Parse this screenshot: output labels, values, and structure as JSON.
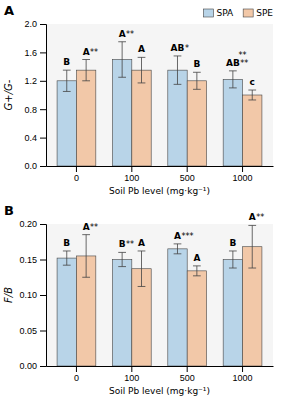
{
  "chart_data": [
    {
      "type": "bar",
      "title": "A",
      "xlabel": "Soil Pb level (mg·kg⁻¹)",
      "ylabel": "G+/G-",
      "categories": [
        "0",
        "100",
        "500",
        "1000"
      ],
      "series": [
        {
          "name": "SPA",
          "color": "#b8d4e8",
          "values": [
            1.2,
            1.5,
            1.35,
            1.22
          ],
          "errors": [
            0.15,
            0.25,
            0.2,
            0.12
          ],
          "labels": [
            "B",
            "A",
            "AB",
            "AB"
          ],
          "significance": [
            null,
            "**",
            "*",
            "**"
          ]
        },
        {
          "name": "SPE",
          "color": "#f2c8a8",
          "values": [
            1.35,
            1.35,
            1.2,
            1.0
          ],
          "errors": [
            0.15,
            0.18,
            0.12,
            0.07
          ],
          "labels": [
            "A",
            "A",
            "B",
            "c"
          ],
          "significance": [
            "**",
            null,
            null,
            null
          ]
        }
      ],
      "annotations": [
        {
          "text": "**",
          "x": "1000"
        }
      ],
      "ylim": [
        0.0,
        2.0
      ],
      "yticks": [
        {
          "value": 0.0,
          "label": "0.0"
        },
        0.4,
        0.8,
        1.2,
        1.6,
        {
          "value": 2.0,
          "label": "2.0"
        }
      ],
      "grid": false,
      "legend": "upper right"
    },
    {
      "type": "bar",
      "title": "B",
      "xlabel": "Soil Pb level (mg·kg⁻¹)",
      "ylabel": "F/B",
      "categories": [
        "0",
        "100",
        "500",
        "1000"
      ],
      "series": [
        {
          "name": "SPA",
          "color": "#b8d4e8",
          "values": [
            0.152,
            0.15,
            0.165,
            0.15
          ],
          "errors": [
            0.01,
            0.01,
            0.007,
            0.012
          ],
          "labels": [
            "B",
            "B",
            "A",
            "B"
          ],
          "significance": [
            null,
            "**",
            "***",
            null
          ]
        },
        {
          "name": "SPE",
          "color": "#f2c8a8",
          "values": [
            0.155,
            0.137,
            0.134,
            0.168
          ],
          "errors": [
            0.03,
            0.025,
            0.007,
            0.03
          ],
          "labels": [
            "A",
            "A",
            "A",
            "A"
          ],
          "significance": [
            "**",
            null,
            null,
            "**"
          ]
        }
      ],
      "ylim": [
        0.0,
        0.2
      ],
      "yticks": [
        {
          "value": 0.0,
          "label": "0.00"
        },
        0.05,
        {
          "value": 0.1,
          "label": "0.10"
        },
        0.15,
        {
          "value": 0.2,
          "label": "0.20"
        }
      ],
      "grid": false
    }
  ]
}
